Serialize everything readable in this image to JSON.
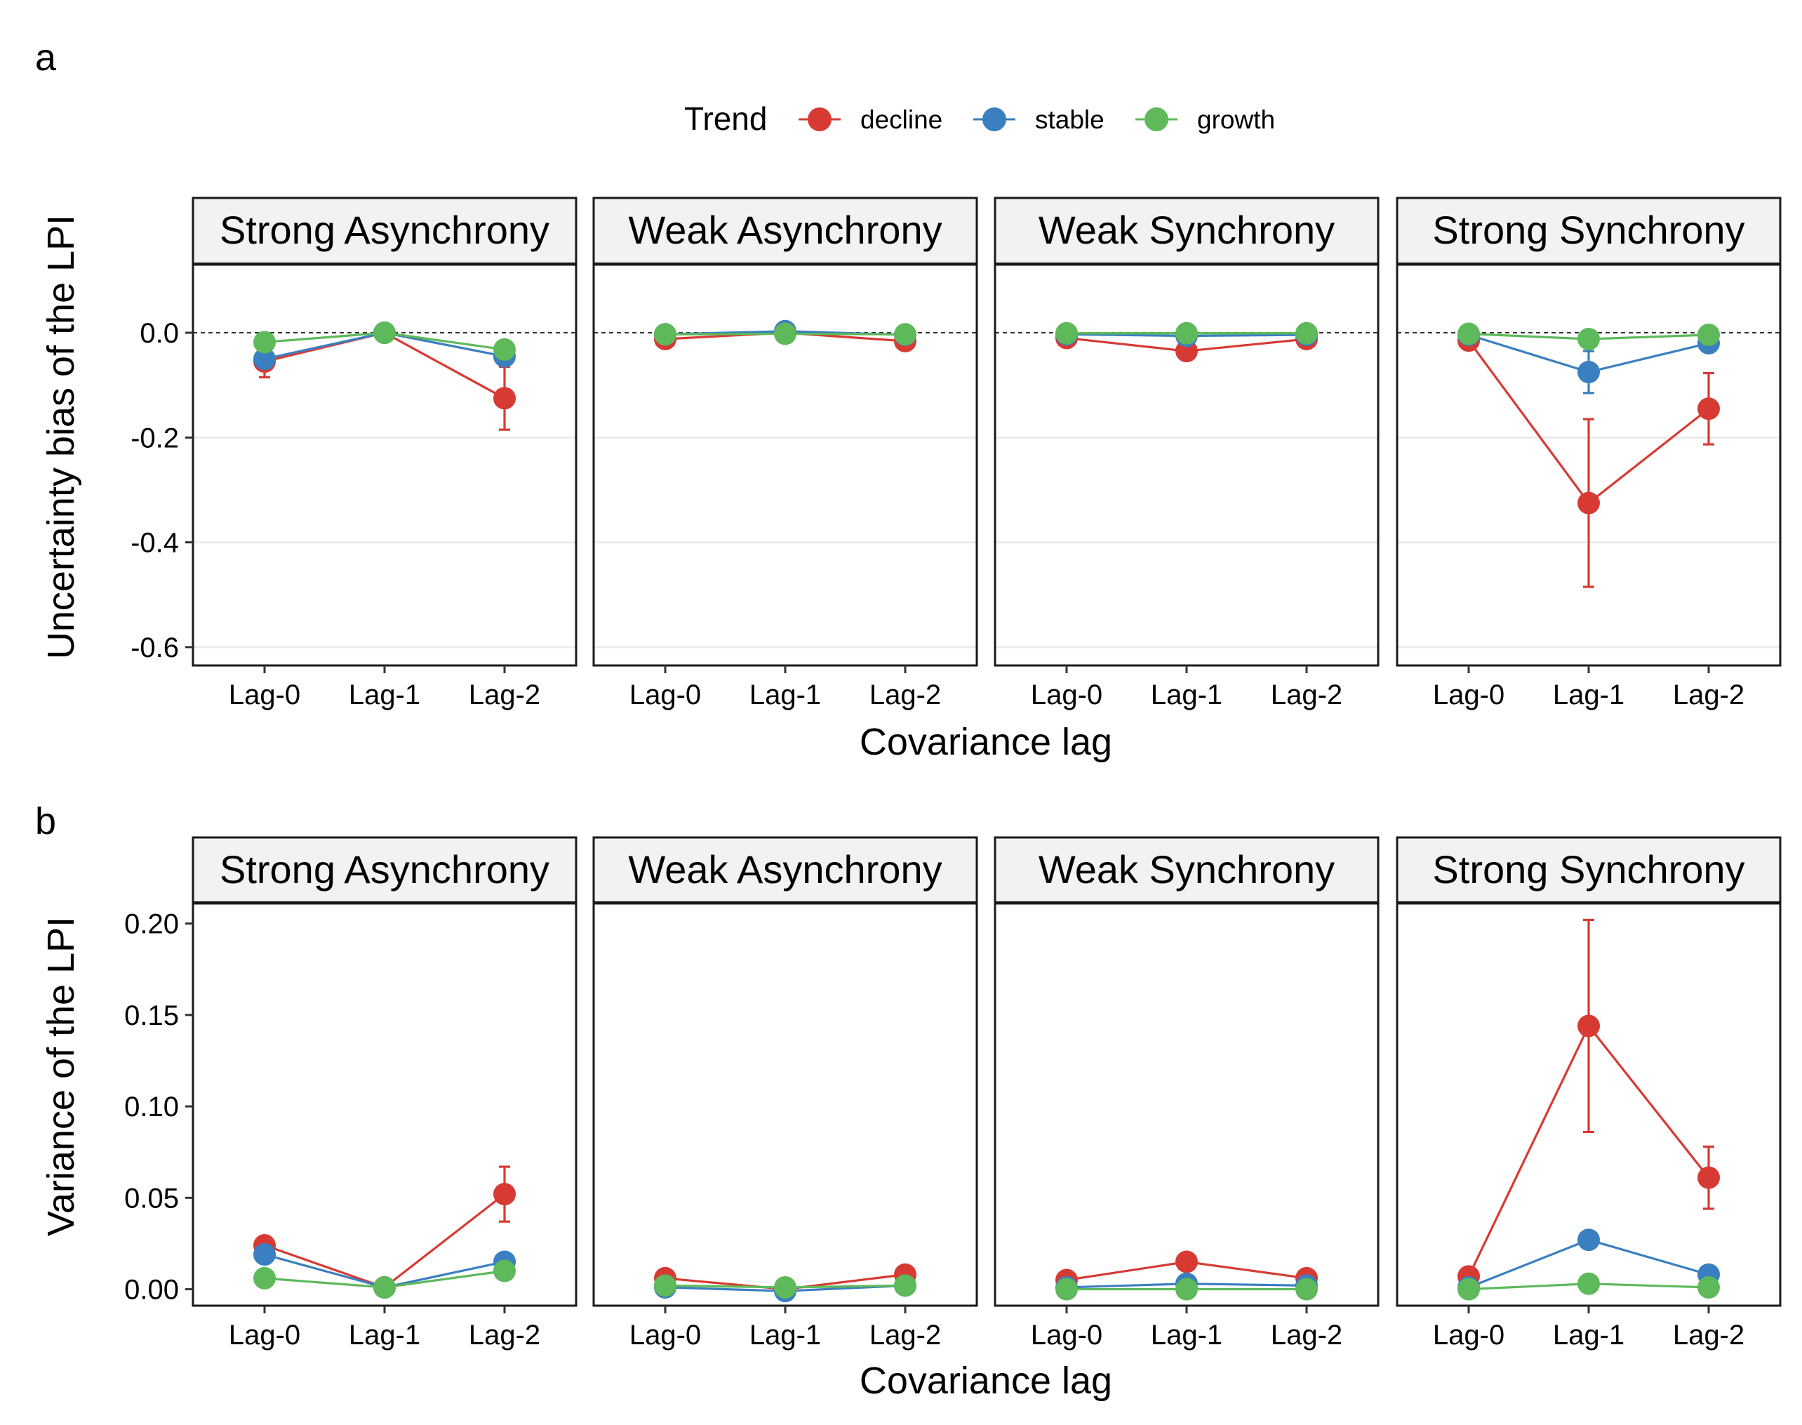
{
  "panel_letters": [
    "a",
    "b"
  ],
  "legend": {
    "title": "Trend",
    "items": [
      {
        "label": "decline",
        "color": "#D73A33"
      },
      {
        "label": "stable",
        "color": "#3A7FC0"
      },
      {
        "label": "growth",
        "color": "#5DB95A"
      }
    ]
  },
  "chart_data": [
    {
      "type": "line",
      "id": "a",
      "ylabel": "Uncertainty bias of the LPI",
      "xlabel": "Covariance lag",
      "ylim": [
        -0.635,
        0.13
      ],
      "yticks": [
        0.0,
        -0.2,
        -0.4,
        -0.6
      ],
      "ytick_labels": [
        "0.0",
        "-0.2",
        "-0.4",
        "-0.6"
      ],
      "reference_line": 0.0,
      "grid": "horizontal",
      "categories": [
        "Lag-0",
        "Lag-1",
        "Lag-2"
      ],
      "facets": [
        {
          "label": "Strong Asynchrony",
          "series": [
            {
              "name": "decline",
              "values": [
                -0.055,
                0.0,
                -0.125
              ],
              "error": [
                0.03,
                0.005,
                0.06
              ]
            },
            {
              "name": "stable",
              "values": [
                -0.05,
                0.0,
                -0.045
              ],
              "error": [
                0.01,
                0.003,
                0.015
              ]
            },
            {
              "name": "growth",
              "values": [
                -0.018,
                0.0,
                -0.032
              ],
              "error": [
                0.006,
                0.003,
                0.008
              ]
            }
          ]
        },
        {
          "label": "Weak Asynchrony",
          "series": [
            {
              "name": "decline",
              "values": [
                -0.012,
                0.0,
                -0.016
              ],
              "error": [
                0.004,
                0.002,
                0.004
              ]
            },
            {
              "name": "stable",
              "values": [
                -0.003,
                0.003,
                -0.004
              ],
              "error": [
                0.002,
                0.002,
                0.002
              ]
            },
            {
              "name": "growth",
              "values": [
                -0.003,
                -0.002,
                -0.003
              ],
              "error": [
                0.002,
                0.002,
                0.002
              ]
            }
          ]
        },
        {
          "label": "Weak Synchrony",
          "series": [
            {
              "name": "decline",
              "values": [
                -0.01,
                -0.035,
                -0.012
              ],
              "error": [
                0.004,
                0.006,
                0.004
              ]
            },
            {
              "name": "stable",
              "values": [
                -0.003,
                -0.006,
                -0.004
              ],
              "error": [
                0.002,
                0.003,
                0.002
              ]
            },
            {
              "name": "growth",
              "values": [
                -0.001,
                -0.001,
                -0.001
              ],
              "error": [
                0.002,
                0.002,
                0.002
              ]
            }
          ]
        },
        {
          "label": "Strong Synchrony",
          "series": [
            {
              "name": "decline",
              "values": [
                -0.015,
                -0.325,
                -0.145
              ],
              "error": [
                0.005,
                0.16,
                0.068
              ]
            },
            {
              "name": "stable",
              "values": [
                -0.004,
                -0.075,
                -0.02
              ],
              "error": [
                0.003,
                0.04,
                0.006
              ]
            },
            {
              "name": "growth",
              "values": [
                -0.002,
                -0.012,
                -0.004
              ],
              "error": [
                0.002,
                0.005,
                0.002
              ]
            }
          ]
        }
      ]
    },
    {
      "type": "line",
      "id": "b",
      "ylabel": "Variance of the LPI",
      "xlabel": "Covariance lag",
      "ylim": [
        -0.009,
        0.211
      ],
      "yticks": [
        0.0,
        0.05,
        0.1,
        0.15,
        0.2
      ],
      "ytick_labels": [
        "0.00",
        "0.05",
        "0.10",
        "0.15",
        "0.20"
      ],
      "grid": "none",
      "categories": [
        "Lag-0",
        "Lag-1",
        "Lag-2"
      ],
      "facets": [
        {
          "label": "Strong Asynchrony",
          "series": [
            {
              "name": "decline",
              "values": [
                0.024,
                0.001,
                0.052
              ],
              "error": [
                0.002,
                0.0005,
                0.015
              ]
            },
            {
              "name": "stable",
              "values": [
                0.019,
                0.001,
                0.015
              ],
              "error": [
                0.002,
                0.0005,
                0.002
              ]
            },
            {
              "name": "growth",
              "values": [
                0.006,
                0.001,
                0.01
              ],
              "error": [
                0.001,
                0.0005,
                0.001
              ]
            }
          ]
        },
        {
          "label": "Weak Asynchrony",
          "series": [
            {
              "name": "decline",
              "values": [
                0.006,
                0.0,
                0.008
              ],
              "error": [
                0.001,
                0.0005,
                0.001
              ]
            },
            {
              "name": "stable",
              "values": [
                0.001,
                -0.001,
                0.002
              ],
              "error": [
                0.0005,
                0.0005,
                0.0005
              ]
            },
            {
              "name": "growth",
              "values": [
                0.002,
                0.001,
                0.002
              ],
              "error": [
                0.0005,
                0.0005,
                0.0005
              ]
            }
          ]
        },
        {
          "label": "Weak Synchrony",
          "series": [
            {
              "name": "decline",
              "values": [
                0.005,
                0.015,
                0.006
              ],
              "error": [
                0.001,
                0.002,
                0.001
              ]
            },
            {
              "name": "stable",
              "values": [
                0.001,
                0.003,
                0.002
              ],
              "error": [
                0.0005,
                0.0005,
                0.0005
              ]
            },
            {
              "name": "growth",
              "values": [
                0.0,
                0.0,
                0.0
              ],
              "error": [
                0.0005,
                0.0005,
                0.0005
              ]
            }
          ]
        },
        {
          "label": "Strong Synchrony",
          "series": [
            {
              "name": "decline",
              "values": [
                0.007,
                0.144,
                0.061
              ],
              "error": [
                0.001,
                0.058,
                0.017
              ]
            },
            {
              "name": "stable",
              "values": [
                0.001,
                0.027,
                0.008
              ],
              "error": [
                0.0005,
                0.003,
                0.001
              ]
            },
            {
              "name": "growth",
              "values": [
                0.0,
                0.003,
                0.001
              ],
              "error": [
                0.0005,
                0.0005,
                0.0005
              ]
            }
          ]
        }
      ]
    }
  ]
}
